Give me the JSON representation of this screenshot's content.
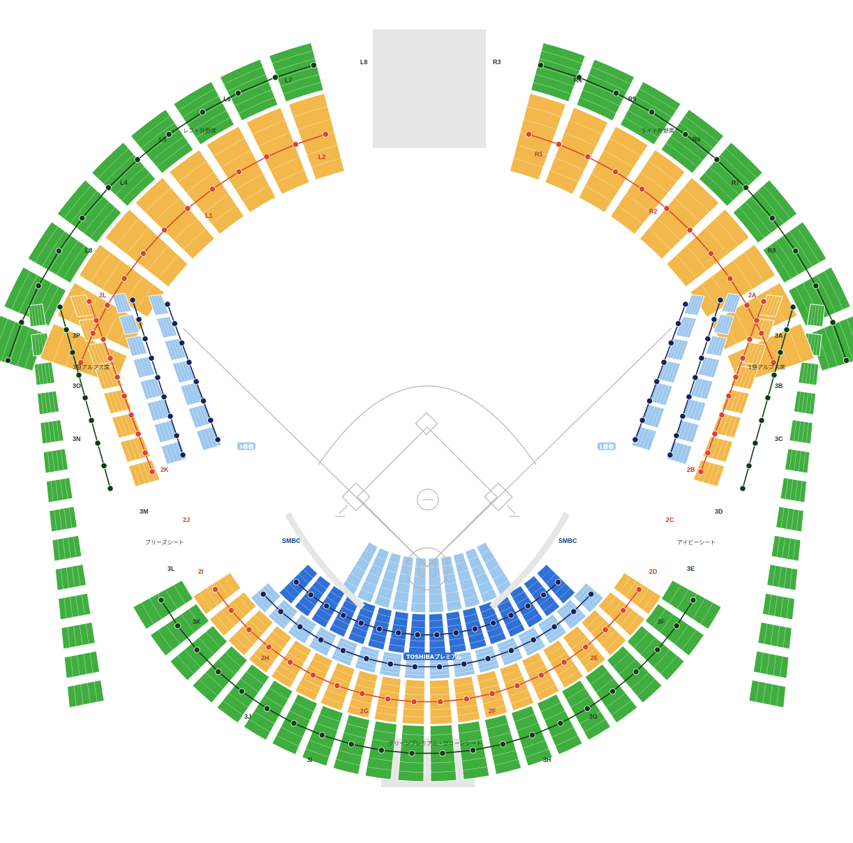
{
  "colors": {
    "outer_green": "#3fae3f",
    "mid_orange": "#f2b84b",
    "light_blue": "#9cc7ee",
    "dark_blue": "#2f6fd6",
    "marker_orange": "#e0442a",
    "marker_navy": "#14235e",
    "marker_green": "#0d3d12",
    "field_line": "#b5b5b5",
    "gap_gray": "#e6e6e6"
  },
  "outfield_sections": {
    "left": [
      "L1",
      "L2",
      "L3",
      "L4",
      "L5",
      "L6",
      "L7",
      "L8"
    ],
    "right": [
      "R1",
      "R2",
      "R3",
      "R4",
      "R5",
      "R6",
      "R7",
      "R8"
    ]
  },
  "left_side_sections": [
    "2L",
    "2K",
    "2J",
    "2I",
    "2H",
    "2G",
    "3P",
    "3O",
    "3N",
    "3M",
    "3L",
    "3K",
    "3J",
    "3I"
  ],
  "right_side_sections": [
    "2A",
    "2B",
    "2C",
    "2D",
    "2E",
    "2F",
    "3A",
    "3B",
    "3C",
    "3D",
    "3E",
    "3F",
    "3G",
    "3H"
  ],
  "area_labels": {
    "left_outfield": "レフト外野席",
    "right_outfield": "ライト外野席",
    "left_alps": "3塁アルプス席",
    "right_alps": "1塁アルプス席",
    "left_free": "ブリーズシート",
    "right_ivy": "アイビーシート",
    "toshiba": "TOSHIBAプレミアム",
    "green_premium": "グリーンプレミアム・グリーンシート",
    "third_base_tag": "3塁側",
    "first_base_tag": "1塁側",
    "ss_left": "SMBC",
    "ss_right": "SMBC"
  }
}
